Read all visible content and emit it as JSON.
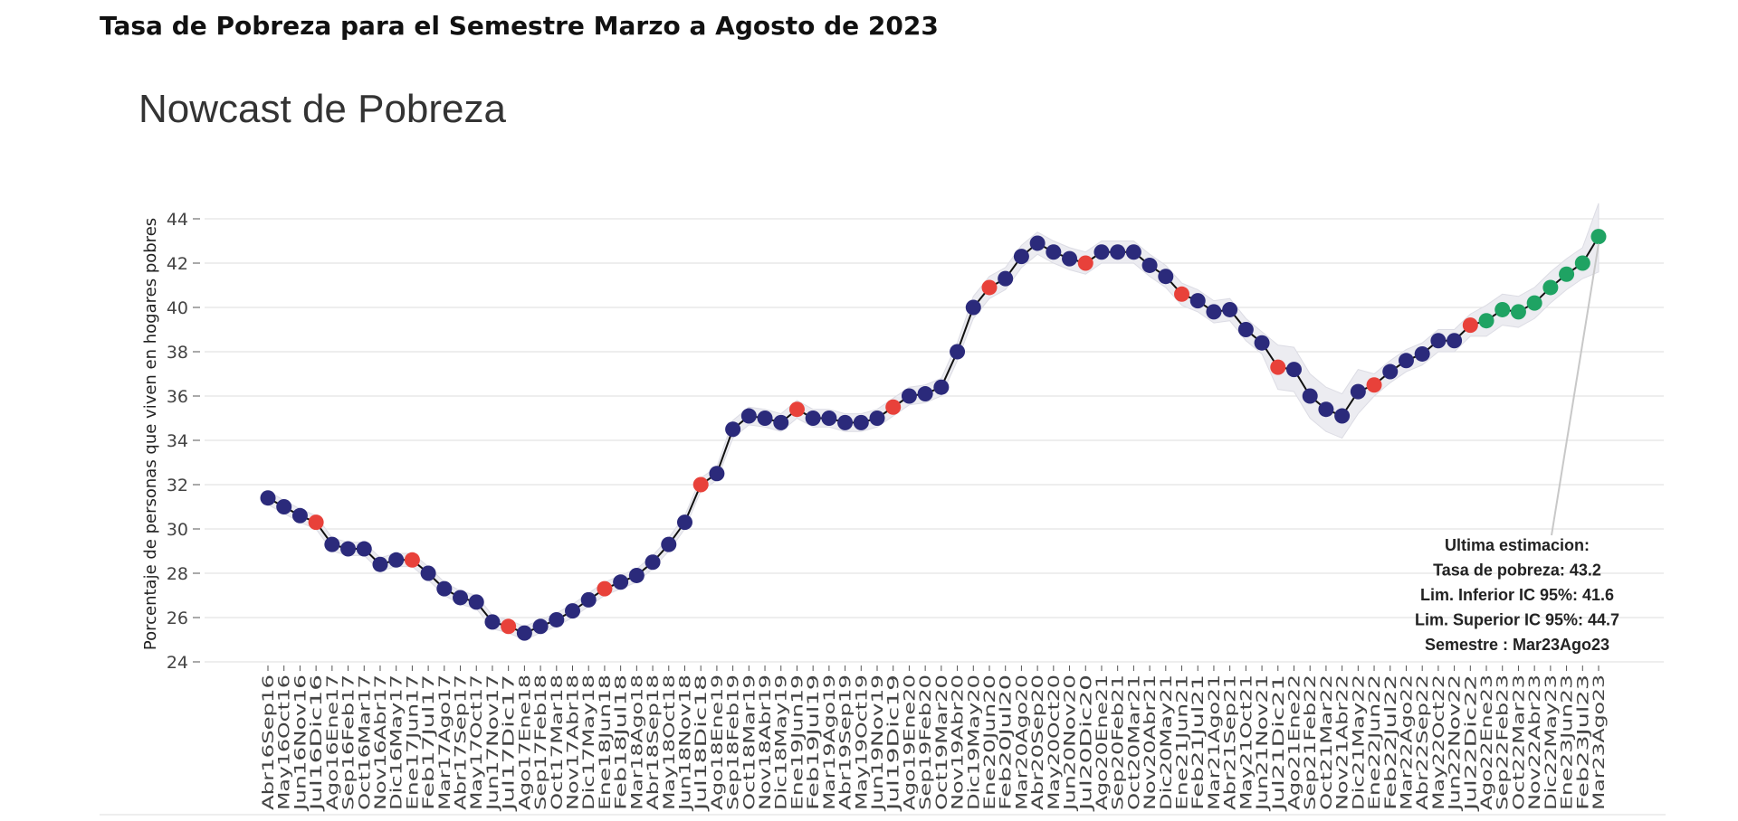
{
  "header": "Tasa de Pobreza para el Semestre Marzo a Agosto de 2023",
  "chart_data": {
    "type": "line",
    "title": "Nowcast de Pobreza",
    "y_label": "Porcentaje de personas que viven en hogares pobres",
    "categories": [
      "Abr16Sep16",
      "May16Oct16",
      "Jun16Nov16",
      "Jul16Dic16",
      "Ago16Ene17",
      "Sep16Feb17",
      "Oct16Mar17",
      "Nov16Abr17",
      "Dic16May17",
      "Ene17Jun17",
      "Feb17Jul17",
      "Mar17Ago17",
      "Abr17Sep17",
      "May17Oct17",
      "Jun17Nov17",
      "Jul17Dic17",
      "Ago17Ene18",
      "Sep17Feb18",
      "Oct17Mar18",
      "Nov17Abr18",
      "Dic17May18",
      "Ene18Jun18",
      "Feb18Jul18",
      "Mar18Ago18",
      "Abr18Sep18",
      "May18Oct18",
      "Jun18Nov18",
      "Jul18Dic18",
      "Ago18Ene19",
      "Sep18Feb19",
      "Oct18Mar19",
      "Nov18Abr19",
      "Dic18May19",
      "Ene19Jun19",
      "Feb19Jul19",
      "Mar19Ago19",
      "Abr19Sep19",
      "May19Oct19",
      "Jun19Nov19",
      "Jul19Dic19",
      "Ago19Ene20",
      "Sep19Feb20",
      "Oct19Mar20",
      "Nov19Abr20",
      "Dic19May20",
      "Ene20Jun20",
      "Feb20Jul20",
      "Mar20Ago20",
      "Abr20Sep20",
      "May20Oct20",
      "Jun20Nov20",
      "Jul20Dic20",
      "Ago20Ene21",
      "Sep20Feb21",
      "Oct20Mar21",
      "Nov20Abr21",
      "Dic20May21",
      "Ene21Jun21",
      "Feb21Jul21",
      "Mar21Ago21",
      "Abr21Sep21",
      "May21Oct21",
      "Jun21Nov21",
      "Jul21Dic21",
      "Ago21Ene22",
      "Sep21Feb22",
      "Oct21Mar22",
      "Nov21Abr22",
      "Dic21May22",
      "Ene22Jun22",
      "Feb22Jul22",
      "Mar22Ago22",
      "Abr22Sep22",
      "May22Oct22",
      "Jun22Nov22",
      "Jul22Dic22",
      "Ago22Ene23",
      "Sep22Feb23",
      "Oct22Mar23",
      "Nov22Abr23",
      "Dic22May23",
      "Ene23Jun23",
      "Feb23Jul23",
      "Mar23Ago23"
    ],
    "series": [
      {
        "name": "Tasa de pobreza",
        "color": "#111111",
        "values": [
          31.4,
          31.0,
          30.6,
          30.3,
          29.3,
          29.1,
          29.1,
          28.4,
          28.6,
          28.6,
          28.0,
          27.3,
          26.9,
          26.7,
          25.8,
          25.6,
          25.3,
          25.6,
          25.9,
          26.3,
          26.8,
          27.3,
          27.6,
          27.9,
          28.5,
          29.3,
          30.3,
          32.0,
          32.5,
          34.5,
          35.1,
          35.0,
          34.8,
          35.4,
          35.0,
          35.0,
          34.8,
          34.8,
          35.0,
          35.5,
          36.0,
          36.1,
          36.4,
          38.0,
          40.0,
          40.9,
          41.3,
          42.3,
          42.9,
          42.5,
          42.2,
          42.0,
          42.5,
          42.5,
          42.5,
          41.9,
          41.4,
          40.6,
          40.3,
          39.8,
          39.9,
          39.0,
          38.4,
          37.3,
          37.2,
          36.0,
          35.4,
          35.1,
          36.2,
          36.5,
          37.1,
          37.6,
          37.9,
          38.5,
          38.5,
          39.2,
          39.4,
          39.9,
          39.8,
          40.2,
          40.9,
          41.5,
          42.0,
          43.2
        ],
        "upper": [
          31.7,
          31.3,
          30.9,
          30.6,
          29.6,
          29.4,
          29.4,
          28.7,
          28.9,
          28.9,
          28.3,
          27.6,
          27.2,
          27.0,
          26.1,
          25.9,
          25.6,
          25.9,
          26.2,
          26.6,
          27.1,
          27.6,
          27.9,
          28.2,
          28.8,
          29.6,
          30.6,
          32.3,
          32.8,
          34.9,
          35.5,
          35.4,
          35.2,
          35.8,
          35.4,
          35.4,
          35.2,
          35.2,
          35.4,
          35.9,
          36.4,
          36.5,
          36.8,
          38.4,
          40.5,
          41.4,
          41.8,
          42.8,
          43.4,
          43.0,
          42.7,
          42.5,
          43.0,
          43.0,
          43.0,
          42.4,
          41.9,
          41.1,
          40.8,
          40.3,
          40.4,
          39.5,
          38.9,
          38.3,
          38.2,
          37.0,
          36.4,
          36.1,
          37.2,
          37.0,
          37.6,
          38.1,
          38.4,
          39.0,
          39.0,
          39.7,
          40.1,
          40.6,
          40.5,
          40.9,
          41.6,
          42.2,
          42.7,
          44.7
        ],
        "lower": [
          31.1,
          30.7,
          30.3,
          30.0,
          29.0,
          28.8,
          28.8,
          28.1,
          28.3,
          28.3,
          27.7,
          27.0,
          26.6,
          26.4,
          25.5,
          25.3,
          25.0,
          25.3,
          25.6,
          26.0,
          26.5,
          27.0,
          27.3,
          27.6,
          28.2,
          29.0,
          30.0,
          31.7,
          32.2,
          34.1,
          34.7,
          34.6,
          34.4,
          35.0,
          34.6,
          34.6,
          34.4,
          34.4,
          34.6,
          35.1,
          35.6,
          35.7,
          36.0,
          37.6,
          39.5,
          40.4,
          40.8,
          41.8,
          42.4,
          42.0,
          41.7,
          41.5,
          42.0,
          42.0,
          42.0,
          41.4,
          40.9,
          40.1,
          39.8,
          39.3,
          39.4,
          38.5,
          37.9,
          36.3,
          36.2,
          35.0,
          34.4,
          34.1,
          35.2,
          36.0,
          36.6,
          37.1,
          37.4,
          38.0,
          38.0,
          38.7,
          38.7,
          39.2,
          39.1,
          39.5,
          40.2,
          40.8,
          41.3,
          41.6
        ],
        "band_color": "#ececf1",
        "marker_colors": [
          "#2b2a7b",
          "#2b2a7b",
          "#2b2a7b",
          "#e8413a",
          "#2b2a7b",
          "#2b2a7b",
          "#2b2a7b",
          "#2b2a7b",
          "#2b2a7b",
          "#e8413a",
          "#2b2a7b",
          "#2b2a7b",
          "#2b2a7b",
          "#2b2a7b",
          "#2b2a7b",
          "#e8413a",
          "#2b2a7b",
          "#2b2a7b",
          "#2b2a7b",
          "#2b2a7b",
          "#2b2a7b",
          "#e8413a",
          "#2b2a7b",
          "#2b2a7b",
          "#2b2a7b",
          "#2b2a7b",
          "#2b2a7b",
          "#e8413a",
          "#2b2a7b",
          "#2b2a7b",
          "#2b2a7b",
          "#2b2a7b",
          "#2b2a7b",
          "#e8413a",
          "#2b2a7b",
          "#2b2a7b",
          "#2b2a7b",
          "#2b2a7b",
          "#2b2a7b",
          "#e8413a",
          "#2b2a7b",
          "#2b2a7b",
          "#2b2a7b",
          "#2b2a7b",
          "#2b2a7b",
          "#e8413a",
          "#2b2a7b",
          "#2b2a7b",
          "#2b2a7b",
          "#2b2a7b",
          "#2b2a7b",
          "#e8413a",
          "#2b2a7b",
          "#2b2a7b",
          "#2b2a7b",
          "#2b2a7b",
          "#2b2a7b",
          "#e8413a",
          "#2b2a7b",
          "#2b2a7b",
          "#2b2a7b",
          "#2b2a7b",
          "#2b2a7b",
          "#e8413a",
          "#2b2a7b",
          "#2b2a7b",
          "#2b2a7b",
          "#2b2a7b",
          "#2b2a7b",
          "#e8413a",
          "#2b2a7b",
          "#2b2a7b",
          "#2b2a7b",
          "#2b2a7b",
          "#2b2a7b",
          "#e8413a",
          "#1fa363",
          "#1fa363",
          "#1fa363",
          "#1fa363",
          "#1fa363",
          "#1fa363",
          "#1fa363",
          "#1fa363"
        ]
      }
    ],
    "ylim": [
      24,
      44
    ],
    "yticks": [
      24,
      26,
      28,
      30,
      32,
      34,
      36,
      38,
      40,
      42,
      44
    ],
    "grid": true,
    "annotation": [
      "Ultima estimacion:",
      "Tasa de pobreza:  43.2",
      "Lim. Inferior IC 95%:  41.6",
      "Lim. Superior IC 95%:  44.7",
      "Semestre : Mar23Ago23"
    ]
  }
}
